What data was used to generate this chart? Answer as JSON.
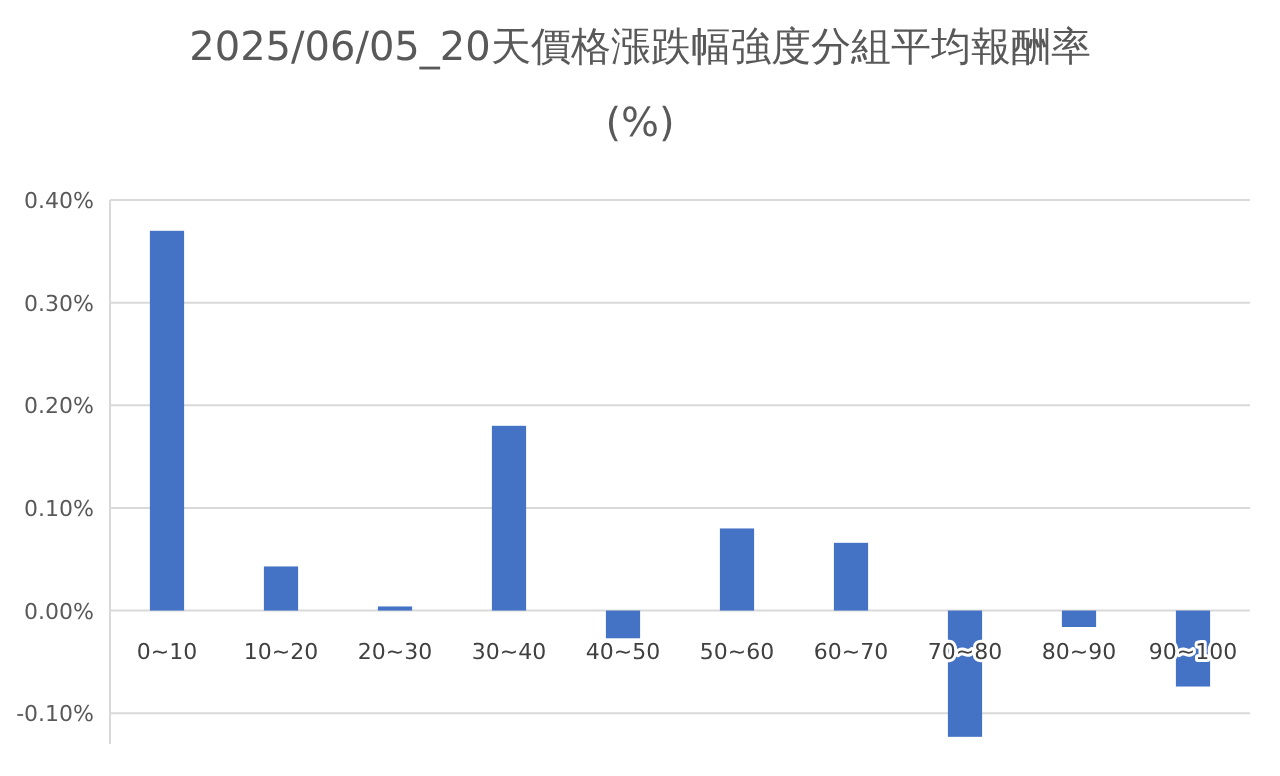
{
  "chart_data": {
    "type": "bar",
    "title": "2025/06/05_20天價格漲跌幅強度分組平均報酬率 (%)",
    "categories": [
      "0~10",
      "10~20",
      "20~30",
      "30~40",
      "40~50",
      "50~60",
      "60~70",
      "70~80",
      "80~90",
      "90~100"
    ],
    "values": [
      0.37,
      0.043,
      0.004,
      0.18,
      -0.027,
      0.08,
      0.066,
      -0.123,
      -0.016,
      -0.074
    ],
    "color": "#4472c4",
    "ylim": [
      -0.13,
      0.4
    ],
    "yticks": [
      {
        "value": -0.1,
        "label": "-0.10%"
      },
      {
        "value": 0,
        "label": "0.00%"
      },
      {
        "value": 0.1,
        "label": "0.10%"
      },
      {
        "value": 0.2,
        "label": "0.20%"
      },
      {
        "value": 0.3,
        "label": "0.30%"
      },
      {
        "value": 0.4,
        "label": "0.40%"
      }
    ],
    "grid": "y"
  }
}
